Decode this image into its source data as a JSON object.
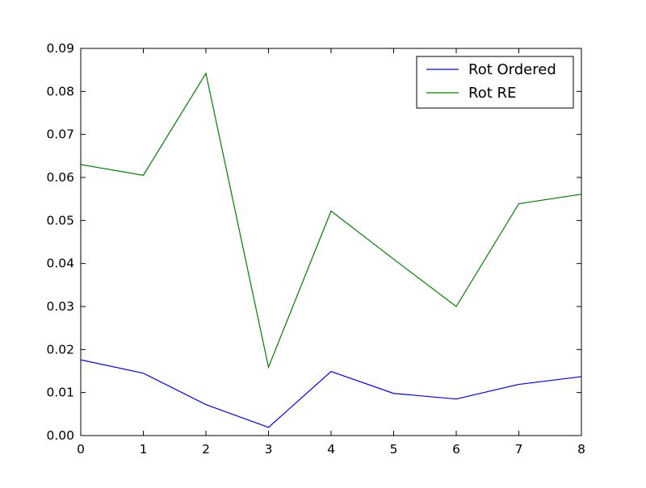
{
  "chart_data": {
    "type": "line",
    "title": "",
    "xlabel": "",
    "ylabel": "",
    "x": [
      0,
      1,
      2,
      3,
      4,
      5,
      6,
      7,
      8
    ],
    "xlim": [
      0,
      8
    ],
    "ylim": [
      0,
      0.09
    ],
    "xticks": [
      "0",
      "1",
      "2",
      "3",
      "4",
      "5",
      "6",
      "7",
      "8"
    ],
    "xtick_values": [
      0,
      1,
      2,
      3,
      4,
      5,
      6,
      7,
      8
    ],
    "yticks": [
      "0.00",
      "0.01",
      "0.02",
      "0.03",
      "0.04",
      "0.05",
      "0.06",
      "0.07",
      "0.08",
      "0.09"
    ],
    "ytick_values": [
      0,
      0.01,
      0.02,
      0.03,
      0.04,
      0.05,
      0.06,
      0.07,
      0.08,
      0.09
    ],
    "grid": false,
    "legend_position": "top-right",
    "series": [
      {
        "name": "Rot Ordered",
        "color": "#0000ff",
        "values": [
          0.0176,
          0.0145,
          0.0072,
          0.0019,
          0.0149,
          0.0098,
          0.0085,
          0.0119,
          0.0137
        ]
      },
      {
        "name": "Rot RE",
        "color": "#008000",
        "values": [
          0.063,
          0.0605,
          0.0842,
          0.0159,
          0.0522,
          0.041,
          0.03,
          0.0539,
          0.0561
        ]
      }
    ]
  }
}
